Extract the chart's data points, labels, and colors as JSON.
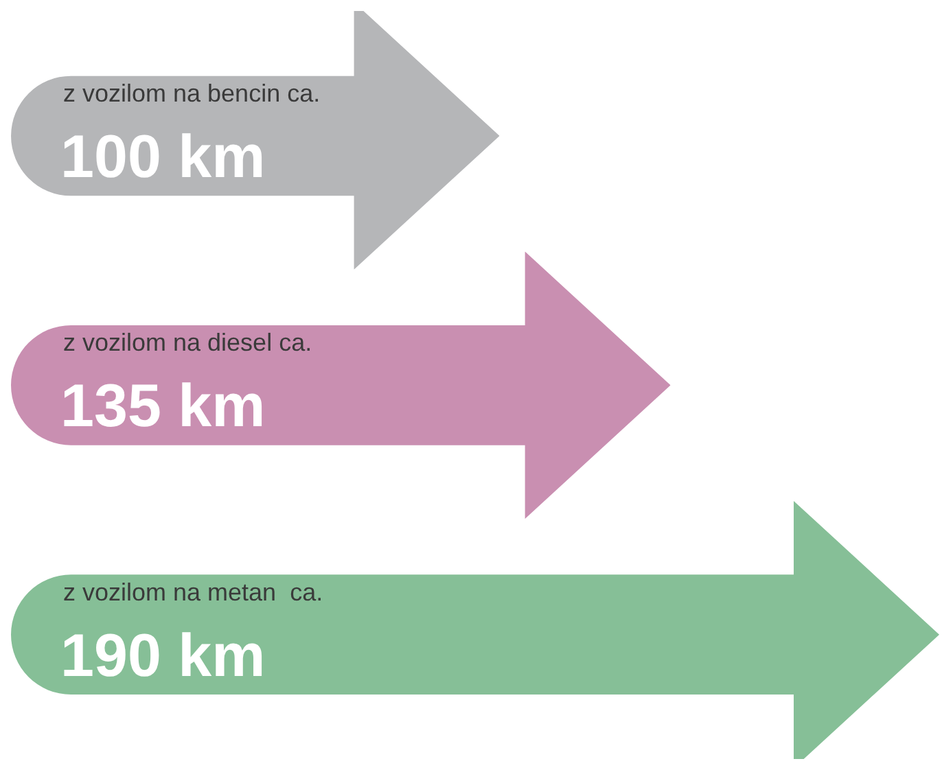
{
  "chart_data": {
    "type": "bar",
    "orientation": "horizontal",
    "categories": [
      null,
      null,
      null
    ],
    "values": [
      100,
      135,
      190
    ],
    "value_labels": [
      "100 km",
      "135 km",
      "190 km"
    ],
    "annotations": [
      "z vozilom na bencin ca.",
      "z vozilom na diesel ca.",
      "z vozilom na metan  ca."
    ],
    "colors": [
      "#b5b6b8",
      "#c98fb1",
      "#86bf97"
    ]
  }
}
